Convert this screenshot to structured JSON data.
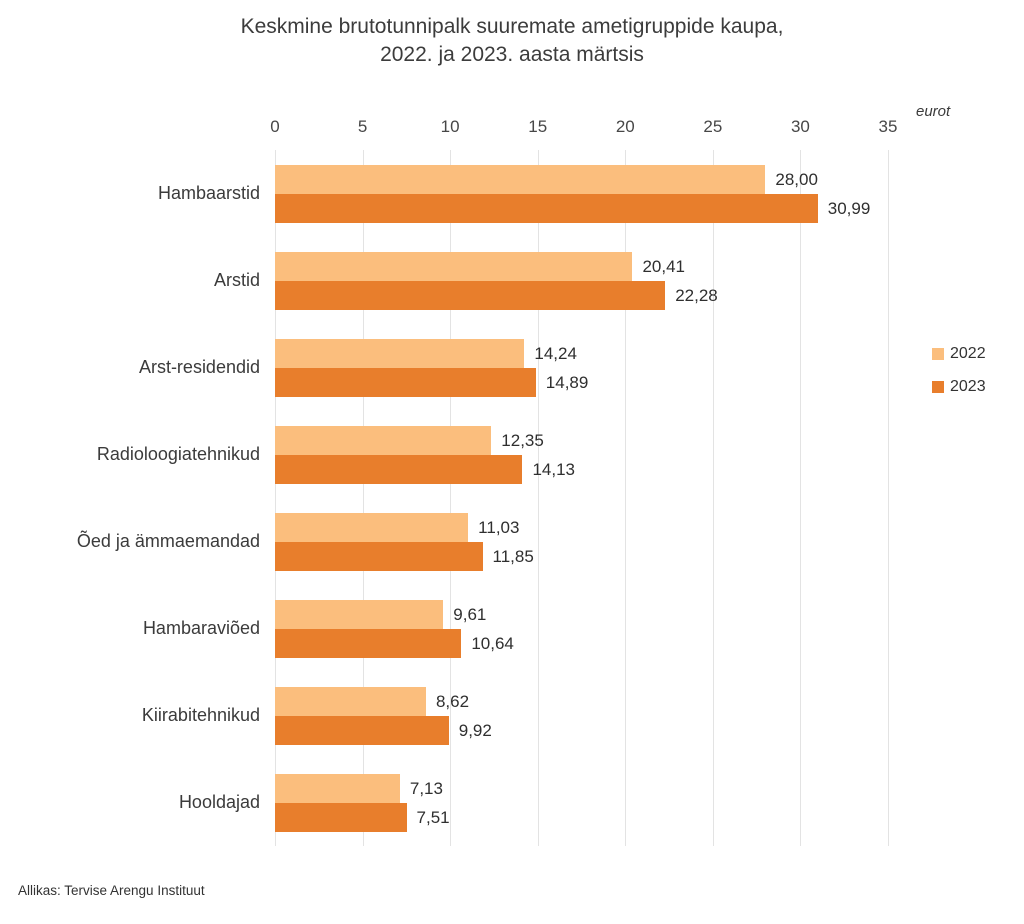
{
  "title": {
    "line1": "Keskmine brutotunnipalk suuremate ametigruppide kaupa,",
    "line2": "2022. ja 2023. aasta märtsis"
  },
  "axis": {
    "unit_label": "eurot"
  },
  "legend": [
    {
      "label": "2022",
      "color": "#FBBE7D"
    },
    {
      "label": "2023",
      "color": "#E87E2C"
    }
  ],
  "source": "Allikas: Tervise Arengu Instituut",
  "colors": {
    "bar_2022": "#FBBE7D",
    "bar_2023": "#E87E2C",
    "gridline": "#E3E3E3",
    "text": "#3B3B3B"
  },
  "chart_data": {
    "type": "bar",
    "orientation": "horizontal",
    "title": "Keskmine brutotunnipalk suuremate ametigruppide kaupa, 2022. ja 2023. aasta märtsis",
    "xlabel": "eurot",
    "xlim": [
      0,
      35
    ],
    "xticks": [
      0,
      5,
      10,
      15,
      20,
      25,
      30,
      35
    ],
    "grid": "vertical",
    "legend_position": "right",
    "categories": [
      "Hambaarstid",
      "Arstid",
      "Arst-residendid",
      "Radioloogiatehnikud",
      "Õed ja ämmaemandad",
      "Hambaraviõed",
      "Kiirabitehnikud",
      "Hooldajad"
    ],
    "series": [
      {
        "name": "2022",
        "color": "#FBBE7D",
        "values": [
          28.0,
          20.41,
          14.24,
          12.35,
          11.03,
          9.61,
          8.62,
          7.13
        ],
        "labels": [
          "28,00",
          "20,41",
          "14,24",
          "12,35",
          "11,03",
          "9,61",
          "8,62",
          "7,13"
        ]
      },
      {
        "name": "2023",
        "color": "#E87E2C",
        "values": [
          30.99,
          22.28,
          14.89,
          14.13,
          11.85,
          10.64,
          9.92,
          7.51
        ],
        "labels": [
          "30,99",
          "22,28",
          "14,89",
          "14,13",
          "11,85",
          "10,64",
          "9,92",
          "7,51"
        ]
      }
    ],
    "source": "Allikas: Tervise Arengu Instituut"
  }
}
